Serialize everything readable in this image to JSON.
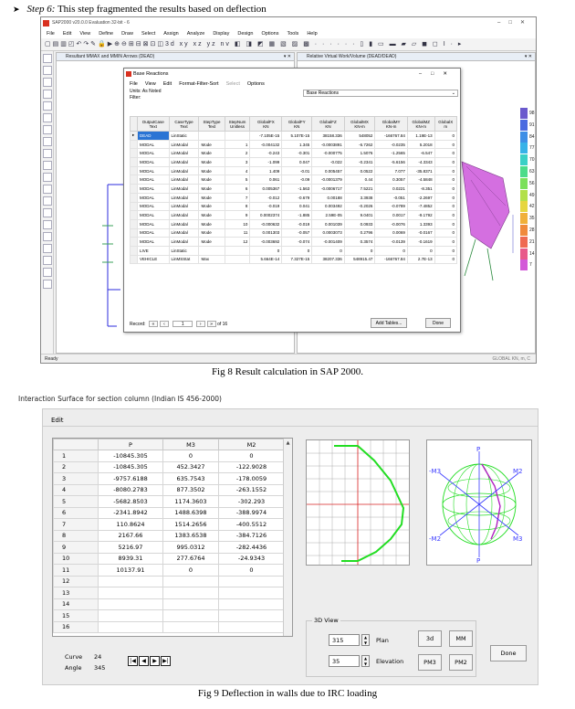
{
  "step": {
    "number": "Step 6:",
    "text": " This step fragmented the results based on deflection"
  },
  "sap": {
    "title": "SAP2000 v20.0.0 Evaluation 32-bit - 6",
    "menu": [
      "File",
      "Edit",
      "View",
      "Define",
      "Draw",
      "Select",
      "Assign",
      "Analyze",
      "Display",
      "Design",
      "Options",
      "Tools",
      "Help"
    ],
    "left_view_title": "Resultant MMAX and MMIN Arrows  (DEAD)",
    "right_view_title": "Relative Virtual Work/Volume (DEAD/DEAD)",
    "status_left": "Ready",
    "status_right": "GLOBAL        KN, m, C",
    "legend_values": [
      "98",
      "91",
      "84",
      "77",
      "70",
      "63",
      "56",
      "49",
      "42",
      "35",
      "28",
      "21",
      "14",
      "7"
    ],
    "legend_colors": [
      "#6a5acd",
      "#4a6be0",
      "#3d8ee6",
      "#36b2e8",
      "#3ad0c6",
      "#4cdc8a",
      "#7be05a",
      "#b3e04a",
      "#e6d640",
      "#f0b03a",
      "#f08a3c",
      "#ef6a52",
      "#e85a8a",
      "#d35ad8"
    ]
  },
  "dialog": {
    "title": "Base Reactions",
    "menu": [
      "File",
      "View",
      "Edit",
      "Format-Filter-Sort",
      "Select",
      "Options"
    ],
    "units_label": "Units:",
    "units_value": "As Noted",
    "filter_label": "Filter:",
    "table_name": "Base Reactions",
    "headers": [
      [
        "OutputCase",
        "Text"
      ],
      [
        "CaseType",
        "Text"
      ],
      [
        "StepType",
        "Text"
      ],
      [
        "StepNum",
        "Unitless"
      ],
      [
        "GlobalFX",
        "KN"
      ],
      [
        "GlobalFY",
        "KN"
      ],
      [
        "GlobalFZ",
        "KN"
      ],
      [
        "GlobalMX",
        "KN-m"
      ],
      [
        "GlobalMY",
        "KN-m"
      ],
      [
        "GlobalMZ",
        "KN-m"
      ],
      [
        "GlobalX",
        "m"
      ]
    ],
    "rows": [
      [
        "DEAD",
        "LinStatic",
        "",
        "",
        "-7.105E-15",
        "5.107E-15",
        "38158.336",
        "548052",
        "-166767.84",
        "1.19E-13",
        "0"
      ],
      [
        "MODAL",
        "LinModal",
        "Mode",
        "1",
        "-0.004132",
        "1.345",
        "-0.0003891",
        "-6.7262",
        "-0.0235",
        "5.2018",
        "0"
      ],
      [
        "MODAL",
        "LinModal",
        "Mode",
        "2",
        "-0.243",
        "-0.301",
        "-0.000775",
        "1.5076",
        "-1.2565",
        "-6.547",
        "0"
      ],
      [
        "MODAL",
        "LinModal",
        "Mode",
        "3",
        "-1.099",
        "0.047",
        "-0.022",
        "-0.2341",
        "-5.6156",
        "-4.3343",
        "0"
      ],
      [
        "MODAL",
        "LinModal",
        "Mode",
        "4",
        "1.409",
        "-0.01",
        "0.005457",
        "0.0522",
        "7.077",
        "-35.8371",
        "0"
      ],
      [
        "MODAL",
        "LinModal",
        "Mode",
        "5",
        "0.061",
        "-0.09",
        "-0.0001379",
        "0.44",
        "0.3057",
        "-4.5848",
        "0"
      ],
      [
        "MODAL",
        "LinModal",
        "Mode",
        "6",
        "0.005367",
        "-1.563",
        "-0.0006717",
        "7.5221",
        "0.0221",
        "-8.351",
        "0"
      ],
      [
        "MODAL",
        "LinModal",
        "Mode",
        "7",
        "-0.012",
        "-0.679",
        "0.00188",
        "3.3938",
        "-0.051",
        "-2.2697",
        "0"
      ],
      [
        "MODAL",
        "LinModal",
        "Mode",
        "8",
        "-0.019",
        "0.041",
        "0.003492",
        "-0.2026",
        "-0.0789",
        "-7.4852",
        "0"
      ],
      [
        "MODAL",
        "LinModal",
        "Mode",
        "9",
        "0.0002374",
        "-1.885",
        "2.59E-05",
        "9.0401",
        "0.0017",
        "-9.1792",
        "0"
      ],
      [
        "MODAL",
        "LinModal",
        "Mode",
        "10",
        "-0.000632",
        "-0.019",
        "0.001039",
        "0.0933",
        "-0.0076",
        "1.3393",
        "0"
      ],
      [
        "MODAL",
        "LinModal",
        "Mode",
        "11",
        "0.001303",
        "-0.057",
        "0.0003073",
        "0.2796",
        "0.0069",
        "-0.0167",
        "0"
      ],
      [
        "MODAL",
        "LinModal",
        "Mode",
        "12",
        "-0.003692",
        "-0.074",
        "-0.001409",
        "0.3574",
        "-0.0139",
        "-0.1619",
        "0"
      ],
      [
        "LIVE",
        "LinStatic",
        "",
        "",
        "0",
        "0",
        "0",
        "0",
        "0",
        "0",
        "0"
      ],
      [
        "VEHICLE",
        "LinMSStat",
        "Max",
        "",
        "5.664E-14",
        "7.327E-15",
        "38207.336",
        "548915.47",
        "-166767.84",
        "2.7E-13",
        "0"
      ]
    ],
    "record_label": "Record:",
    "record_value": "1",
    "record_total": "of 16",
    "add_tables_label": "Add Tables...",
    "done_label": "Done"
  },
  "caption1": "Fig 8 Result calculation in SAP 2000.",
  "win2": {
    "title": "Interaction Surface for section column  (Indian IS 456-2000)",
    "menu_edit": "Edit",
    "headers": [
      "P",
      "M3",
      "M2"
    ],
    "rows": [
      [
        "1",
        "-10845.305",
        "0",
        "0"
      ],
      [
        "2",
        "-10845.305",
        "452.3427",
        "-122.9028"
      ],
      [
        "3",
        "-9757.6188",
        "635.7543",
        "-178.0059"
      ],
      [
        "4",
        "-8080.2783",
        "877.3502",
        "-263.1552"
      ],
      [
        "5",
        "-5682.8503",
        "1174.3603",
        "-302.293"
      ],
      [
        "6",
        "-2341.8942",
        "1488.6398",
        "-388.9974"
      ],
      [
        "7",
        "110.8624",
        "1514.2656",
        "-400.5512"
      ],
      [
        "8",
        "2167.66",
        "1383.6538",
        "-384.7126"
      ],
      [
        "9",
        "5216.97",
        "995.0312",
        "-282.4436"
      ],
      [
        "10",
        "8939.31",
        "277.6764",
        "-24.9343"
      ],
      [
        "11",
        "10137.91",
        "0",
        "0"
      ],
      [
        "12",
        "",
        "",
        ""
      ],
      [
        "13",
        "",
        "",
        ""
      ],
      [
        "14",
        "",
        "",
        ""
      ],
      [
        "15",
        "",
        "",
        ""
      ],
      [
        "16",
        "",
        "",
        ""
      ]
    ],
    "curve_label": "Curve",
    "curve_value": "24",
    "angle_label": "Angle",
    "angle_value": "345",
    "view3d_label": "3D View",
    "plan_value": "315",
    "plan_label": "Plan",
    "elev_value": "35",
    "elev_label": "Elevation",
    "btn_3d": "3d",
    "btn_mm": "MM",
    "btn_pm3": "PM3",
    "btn_pm2": "PM2",
    "btn_done": "Done",
    "axis_labels": {
      "p_top": "P",
      "p_bottom": "P",
      "m3_left": "-M3",
      "m2_right": "M2",
      "m2_left": "-M2",
      "m3_right": "M3"
    }
  },
  "caption2": "Fig 9 Deflection in walls due to IRC loading"
}
